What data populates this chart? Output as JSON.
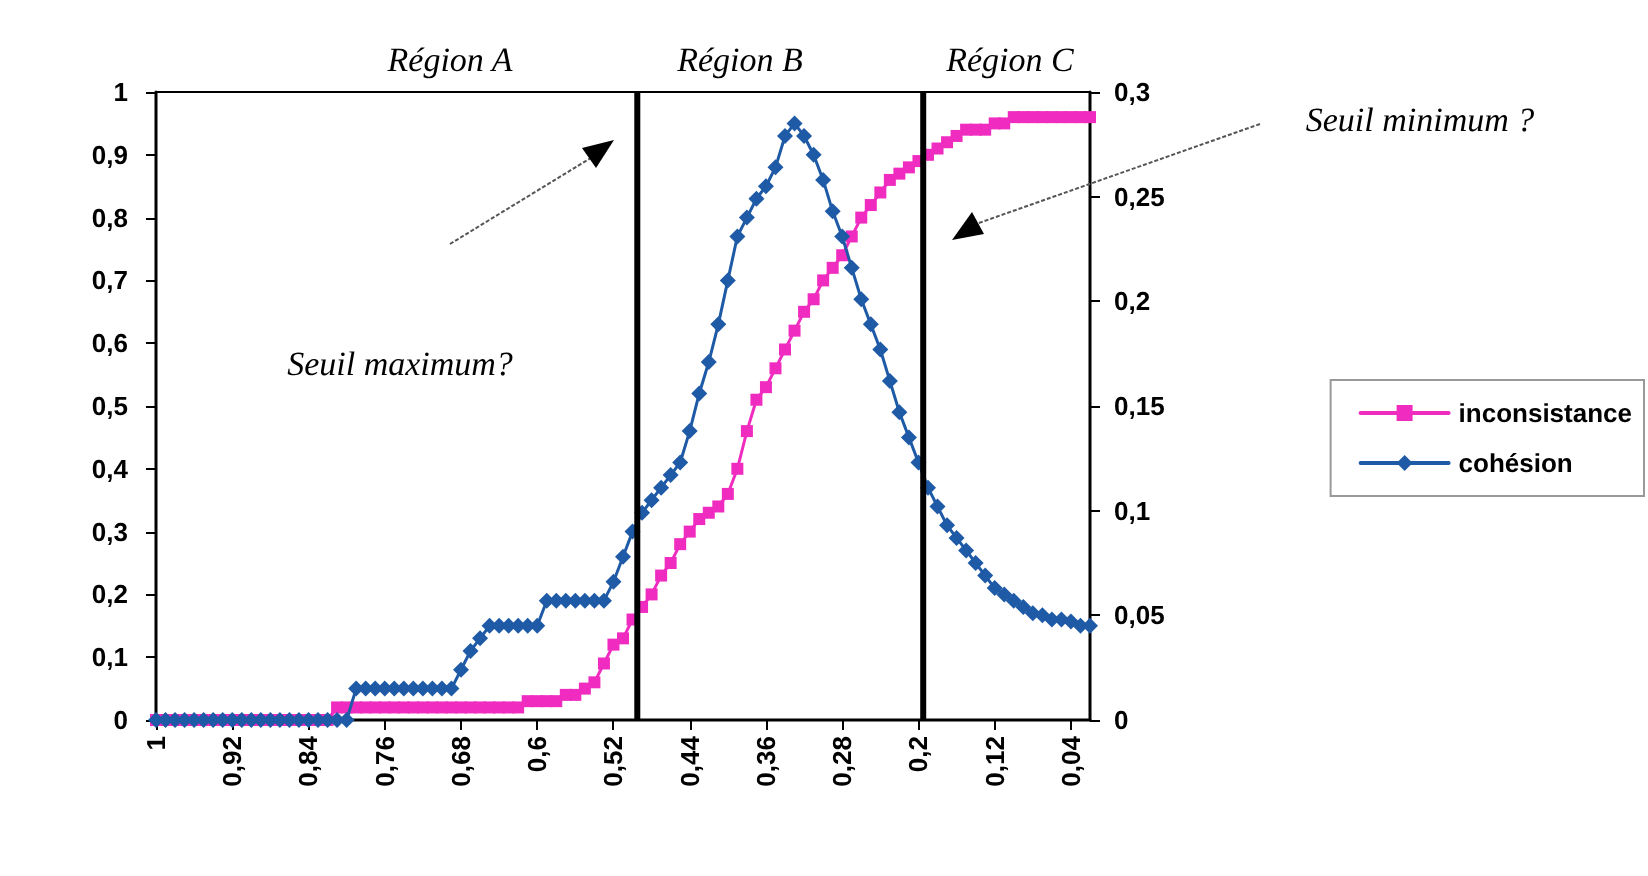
{
  "chart_data": {
    "type": "line",
    "x": [
      1,
      0.99,
      0.98,
      0.97,
      0.96,
      0.95,
      0.94,
      0.93,
      0.92,
      0.91,
      0.9,
      0.89,
      0.88,
      0.87,
      0.86,
      0.85,
      0.84,
      0.83,
      0.82,
      0.81,
      0.8,
      0.79,
      0.78,
      0.77,
      0.76,
      0.75,
      0.74,
      0.73,
      0.72,
      0.71,
      0.7,
      0.69,
      0.68,
      0.67,
      0.66,
      0.65,
      0.64,
      0.63,
      0.62,
      0.61,
      0.6,
      0.59,
      0.58,
      0.57,
      0.56,
      0.55,
      0.54,
      0.53,
      0.52,
      0.51,
      0.5,
      0.49,
      0.48,
      0.47,
      0.46,
      0.45,
      0.44,
      0.43,
      0.42,
      0.41,
      0.4,
      0.39,
      0.38,
      0.37,
      0.36,
      0.35,
      0.34,
      0.33,
      0.32,
      0.31,
      0.3,
      0.29,
      0.28,
      0.27,
      0.26,
      0.25,
      0.24,
      0.23,
      0.22,
      0.21,
      0.2,
      0.19,
      0.18,
      0.17,
      0.16,
      0.15,
      0.14,
      0.13,
      0.12,
      0.11,
      0.1,
      0.09,
      0.08,
      0.07,
      0.06,
      0.05,
      0.04,
      0.03,
      0.02
    ],
    "series": [
      {
        "name": "inconsistance",
        "color": "#f02cc0",
        "marker": "square",
        "values": [
          0,
          0,
          0,
          0,
          0,
          0,
          0,
          0,
          0,
          0,
          0,
          0,
          0,
          0,
          0,
          0,
          0,
          0,
          0,
          0.02,
          0.02,
          0.02,
          0.02,
          0.02,
          0.02,
          0.02,
          0.02,
          0.02,
          0.02,
          0.02,
          0.02,
          0.02,
          0.02,
          0.02,
          0.02,
          0.02,
          0.02,
          0.02,
          0.02,
          0.03,
          0.03,
          0.03,
          0.03,
          0.04,
          0.04,
          0.05,
          0.06,
          0.09,
          0.12,
          0.13,
          0.16,
          0.18,
          0.2,
          0.23,
          0.25,
          0.28,
          0.3,
          0.32,
          0.33,
          0.34,
          0.36,
          0.4,
          0.46,
          0.51,
          0.53,
          0.56,
          0.59,
          0.62,
          0.65,
          0.67,
          0.7,
          0.72,
          0.74,
          0.77,
          0.8,
          0.82,
          0.84,
          0.86,
          0.87,
          0.88,
          0.89,
          0.9,
          0.91,
          0.92,
          0.93,
          0.94,
          0.94,
          0.94,
          0.95,
          0.95,
          0.96,
          0.96,
          0.96,
          0.96,
          0.96,
          0.96,
          0.96,
          0.96,
          0.96
        ]
      },
      {
        "name": "cohésion",
        "color": "#1f5aa6",
        "marker": "diamond",
        "axis": "y2",
        "values": [
          0,
          0,
          0,
          0,
          0,
          0,
          0,
          0,
          0,
          0,
          0,
          0,
          0,
          0,
          0,
          0,
          0,
          0,
          0,
          0,
          0,
          0.015,
          0.015,
          0.015,
          0.015,
          0.015,
          0.015,
          0.015,
          0.015,
          0.015,
          0.015,
          0.015,
          0.024,
          0.033,
          0.039,
          0.045,
          0.045,
          0.045,
          0.045,
          0.045,
          0.045,
          0.057,
          0.057,
          0.057,
          0.057,
          0.057,
          0.057,
          0.057,
          0.066,
          0.078,
          0.09,
          0.099,
          0.105,
          0.111,
          0.117,
          0.123,
          0.138,
          0.156,
          0.171,
          0.189,
          0.21,
          0.231,
          0.24,
          0.249,
          0.255,
          0.264,
          0.279,
          0.285,
          0.279,
          0.27,
          0.258,
          0.243,
          0.231,
          0.216,
          0.201,
          0.189,
          0.177,
          0.162,
          0.147,
          0.135,
          0.123,
          0.111,
          0.102,
          0.093,
          0.087,
          0.081,
          0.075,
          0.069,
          0.063,
          0.06,
          0.057,
          0.054,
          0.051,
          0.05,
          0.048,
          0.048,
          0.047,
          0.045,
          0.045
        ]
      }
    ],
    "xlim": [
      1,
      0.02
    ],
    "xticks": [
      1,
      {
        "value": 0.92,
        "label": "0,92"
      },
      {
        "value": 0.84,
        "label": "0,84"
      },
      {
        "value": 0.76,
        "label": "0,76"
      },
      {
        "value": 0.68,
        "label": "0,68"
      },
      {
        "value": 0.6,
        "label": "0,6"
      },
      {
        "value": 0.52,
        "label": "0,52"
      },
      {
        "value": 0.44,
        "label": "0,44"
      },
      {
        "value": 0.36,
        "label": "0,36"
      },
      {
        "value": 0.28,
        "label": "0,28"
      },
      {
        "value": 0.2,
        "label": "0,2"
      },
      {
        "value": 0.12,
        "label": "0,12"
      },
      {
        "value": 0.04,
        "label": "0,04"
      }
    ],
    "ylim": [
      0,
      1
    ],
    "yticks": [
      0,
      {
        "value": 0.1,
        "label": "0,1"
      },
      {
        "value": 0.2,
        "label": "0,2"
      },
      {
        "value": 0.3,
        "label": "0,3"
      },
      {
        "value": 0.4,
        "label": "0,4"
      },
      {
        "value": 0.5,
        "label": "0,5"
      },
      {
        "value": 0.6,
        "label": "0,6"
      },
      {
        "value": 0.7,
        "label": "0,7"
      },
      {
        "value": 0.8,
        "label": "0,8"
      },
      {
        "value": 0.9,
        "label": "0,9"
      },
      1
    ],
    "y2lim": [
      0,
      0.3
    ],
    "y2ticks": [
      0,
      {
        "value": 0.05,
        "label": "0,05"
      },
      {
        "value": 0.1,
        "label": "0,1"
      },
      {
        "value": 0.15,
        "label": "0,15"
      },
      {
        "value": 0.2,
        "label": "0,2"
      },
      {
        "value": 0.25,
        "label": "0,25"
      },
      {
        "value": 0.3,
        "label": "0,3"
      }
    ],
    "ref_lines": [
      {
        "axis": "x",
        "value": 0.495,
        "color": "#000000"
      },
      {
        "axis": "x",
        "value": 0.195,
        "color": "#000000"
      }
    ],
    "annotations": [
      "Région A",
      "Région B",
      "Région C",
      "Seuil maximum?",
      "Seuil minimum ?"
    ],
    "legend": "right"
  }
}
